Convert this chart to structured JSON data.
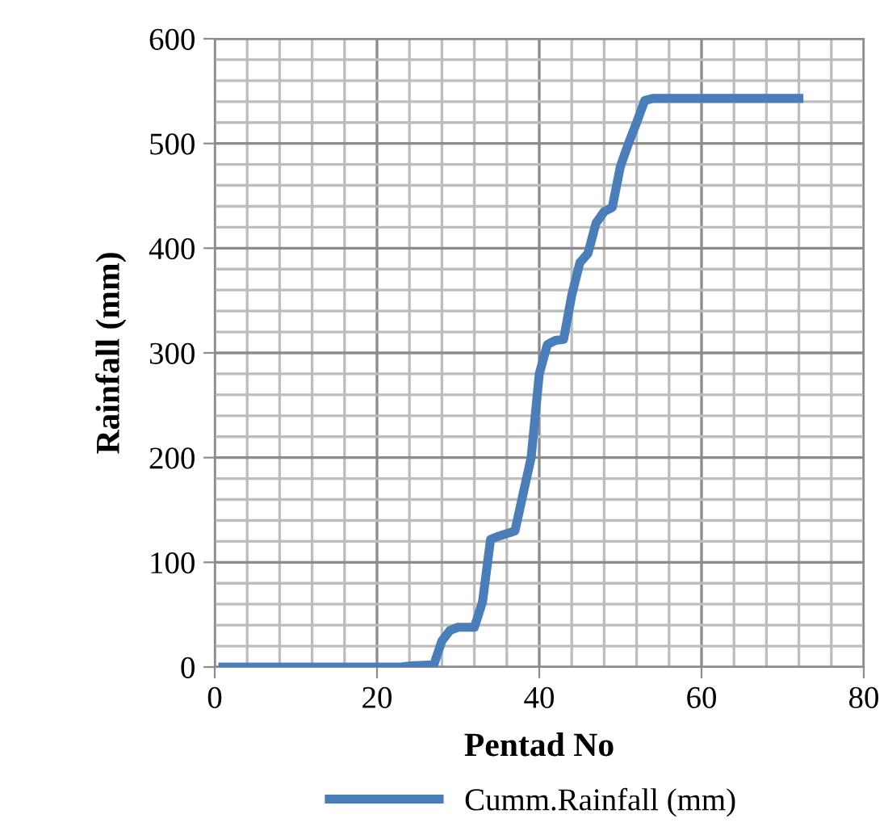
{
  "chart_data": {
    "type": "line",
    "xlabel": "Pentad No",
    "ylabel": "Rainfall (mm)",
    "x": [
      1,
      23,
      24,
      27,
      28,
      29,
      30,
      32,
      33,
      34,
      35,
      37,
      38,
      39,
      40,
      41,
      42,
      43,
      44,
      45,
      46,
      47,
      48,
      49,
      50,
      51,
      52,
      53,
      54,
      72
    ],
    "series": [
      {
        "name": "Cumm.Rainfall (mm)",
        "color": "#4a7ebb",
        "values": [
          0,
          0,
          1,
          2,
          25,
          35,
          38,
          38,
          62,
          122,
          125,
          130,
          165,
          200,
          280,
          308,
          312,
          313,
          355,
          386,
          395,
          424,
          435,
          439,
          478,
          500,
          520,
          541,
          543,
          543
        ]
      }
    ],
    "xlim": [
      0,
      80
    ],
    "ylim": [
      0,
      600
    ],
    "xticks": [
      0,
      20,
      40,
      60,
      80
    ],
    "yticks": [
      0,
      100,
      200,
      300,
      400,
      500,
      600
    ],
    "grid": true,
    "legend": "bottom",
    "marker": "none",
    "line_style": "solid"
  }
}
